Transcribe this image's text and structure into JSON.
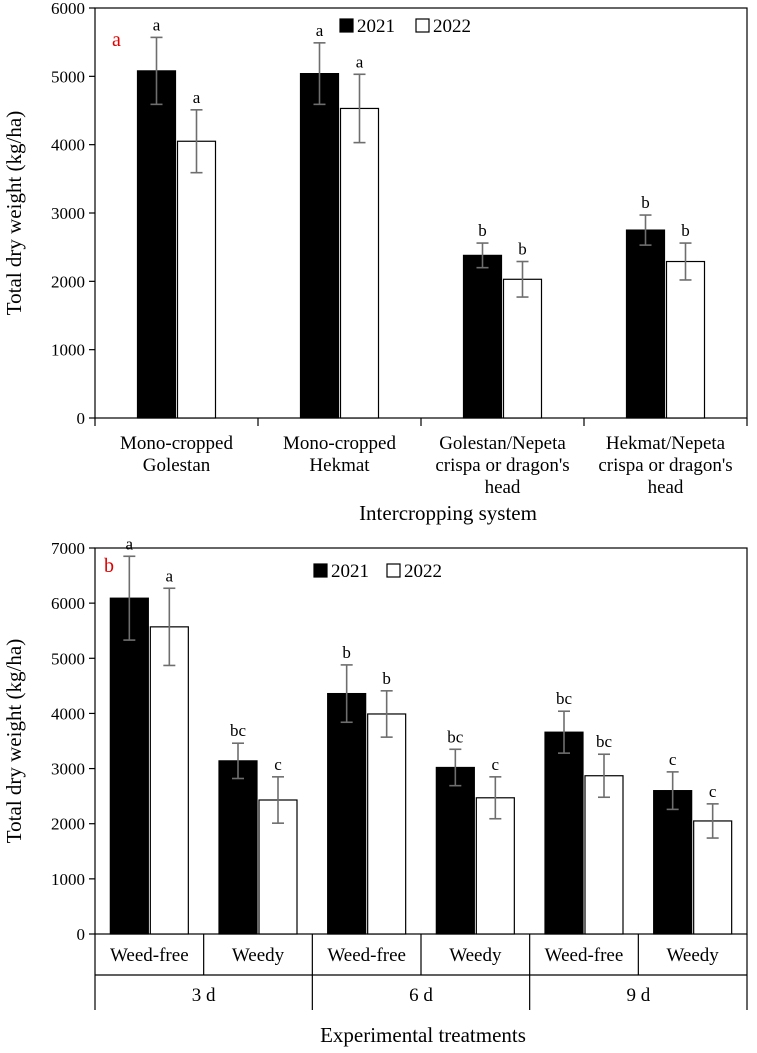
{
  "chart_data": [
    {
      "type": "bar",
      "panel_label": "a",
      "title": "",
      "xlabel": "Intercropping system",
      "ylabel": "Total dry weight (kg/ha)",
      "ylim": [
        0,
        6000
      ],
      "yticks": [
        0,
        1000,
        2000,
        3000,
        4000,
        5000,
        6000
      ],
      "legend_position": "top-center",
      "categories": [
        [
          "Mono-cropped",
          "Golestan"
        ],
        [
          "Mono-cropped",
          "Hekmat"
        ],
        [
          "Golestan/Nepeta",
          "crispa or dragon's",
          "head"
        ],
        [
          "Hekmat/Nepeta",
          "crispa or dragon's",
          "head"
        ]
      ],
      "series": [
        {
          "name": "2021",
          "color": "#000000",
          "values": [
            5080,
            5040,
            2380,
            2750
          ],
          "errors": [
            490,
            450,
            180,
            220
          ],
          "letters": [
            "a",
            "a",
            "b",
            "b"
          ]
        },
        {
          "name": "2022",
          "color": "#ffffff",
          "values": [
            4050,
            4530,
            2030,
            2290
          ],
          "errors": [
            460,
            500,
            260,
            270
          ],
          "letters": [
            "a",
            "a",
            "b",
            "b"
          ]
        }
      ]
    },
    {
      "type": "bar",
      "panel_label": "b",
      "title": "",
      "xlabel": "Experimental treatments",
      "ylabel": "Total dry weight (kg/ha)",
      "ylim": [
        0,
        7000
      ],
      "yticks": [
        0,
        1000,
        2000,
        3000,
        4000,
        5000,
        6000,
        7000
      ],
      "legend_position": "top-center",
      "categories": [
        "Weed-free",
        "Weedy",
        "Weed-free",
        "Weedy",
        "Weed-free",
        "Weedy"
      ],
      "groups": [
        "3 d",
        "6 d",
        "9 d"
      ],
      "series": [
        {
          "name": "2021",
          "color": "#000000",
          "values": [
            6090,
            3140,
            4360,
            3020,
            3660,
            2600
          ],
          "errors": [
            760,
            320,
            520,
            330,
            380,
            340
          ],
          "letters": [
            "a",
            "bc",
            "b",
            "bc",
            "bc",
            "c"
          ]
        },
        {
          "name": "2022",
          "color": "#ffffff",
          "values": [
            5570,
            2430,
            3990,
            2470,
            2870,
            2050
          ],
          "errors": [
            700,
            420,
            420,
            380,
            390,
            310
          ],
          "letters": [
            "a",
            "c",
            "b",
            "c",
            "bc",
            "c"
          ]
        }
      ]
    }
  ]
}
